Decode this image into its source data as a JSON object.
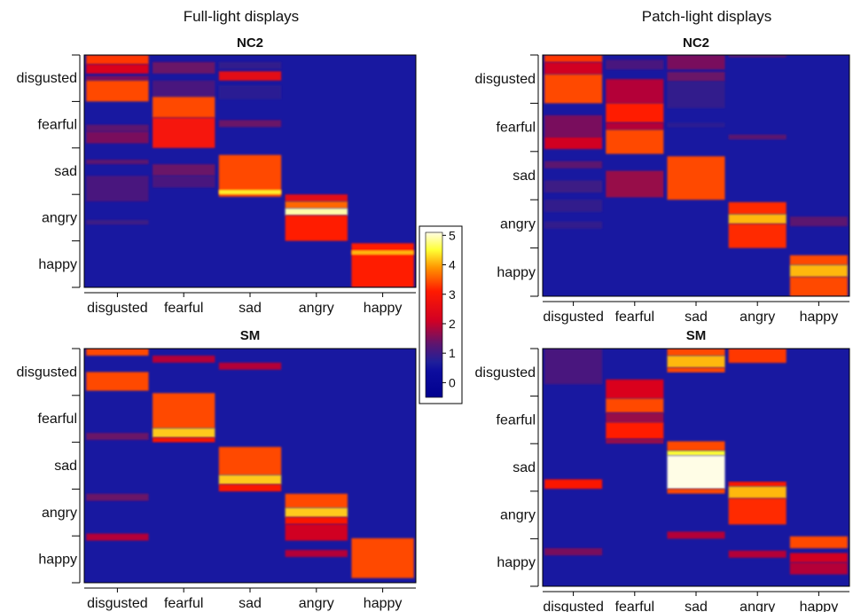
{
  "figure": {
    "col_titles": [
      "Full-light displays",
      "Patch-light displays"
    ],
    "colorbar": {
      "ticks": [
        "5",
        "4",
        "3",
        "2",
        "1",
        "0"
      ],
      "colors": [
        "#fffde6",
        "#ffff33",
        "#ff9500",
        "#ff1a00",
        "#d10024",
        "#5c1570",
        "#1f1f9a",
        "#0d0d9e",
        "#00008f"
      ]
    }
  },
  "colors": {
    "background": "#1818a0",
    "frame": "#000000"
  },
  "chart_data": [
    {
      "type": "heatmap",
      "title": "NC2",
      "column_title": "Full-light displays",
      "rows": [
        "disgusted",
        "fearful",
        "sad",
        "angry",
        "happy"
      ],
      "columns": [
        "disgusted",
        "fearful",
        "sad",
        "angry",
        "happy"
      ],
      "value_range": [
        0,
        5
      ],
      "bands": [
        {
          "col": 0,
          "y0": 0.0,
          "y1": 0.04,
          "v": 3.8
        },
        {
          "col": 0,
          "y0": 0.04,
          "y1": 0.08,
          "v": 2.8
        },
        {
          "col": 0,
          "y0": 0.09,
          "y1": 0.11,
          "v": 2.0
        },
        {
          "col": 0,
          "y0": 0.11,
          "y1": 0.2,
          "v": 3.9
        },
        {
          "col": 0,
          "y0": 0.3,
          "y1": 0.33,
          "v": 1.8
        },
        {
          "col": 0,
          "y0": 0.33,
          "y1": 0.38,
          "v": 2.0
        },
        {
          "col": 0,
          "y0": 0.45,
          "y1": 0.47,
          "v": 1.8
        },
        {
          "col": 0,
          "y0": 0.52,
          "y1": 0.63,
          "v": 1.6
        },
        {
          "col": 0,
          "y0": 0.71,
          "y1": 0.73,
          "v": 1.5
        },
        {
          "col": 1,
          "y0": 0.03,
          "y1": 0.08,
          "v": 1.9
        },
        {
          "col": 1,
          "y0": 0.11,
          "y1": 0.18,
          "v": 1.6
        },
        {
          "col": 1,
          "y0": 0.18,
          "y1": 0.27,
          "v": 3.9
        },
        {
          "col": 1,
          "y0": 0.27,
          "y1": 0.4,
          "v": 3.4
        },
        {
          "col": 1,
          "y0": 0.47,
          "y1": 0.52,
          "v": 1.9
        },
        {
          "col": 1,
          "y0": 0.52,
          "y1": 0.57,
          "v": 1.6
        },
        {
          "col": 2,
          "y0": 0.03,
          "y1": 0.06,
          "v": 1.4
        },
        {
          "col": 2,
          "y0": 0.07,
          "y1": 0.11,
          "v": 3.0
        },
        {
          "col": 2,
          "y0": 0.13,
          "y1": 0.19,
          "v": 1.3
        },
        {
          "col": 2,
          "y0": 0.28,
          "y1": 0.31,
          "v": 1.9
        },
        {
          "col": 2,
          "y0": 0.43,
          "y1": 0.61,
          "v": 3.9
        },
        {
          "col": 2,
          "y0": 0.58,
          "y1": 0.6,
          "v": 4.9
        },
        {
          "col": 3,
          "y0": 0.6,
          "y1": 0.63,
          "v": 3.0
        },
        {
          "col": 3,
          "y0": 0.63,
          "y1": 0.66,
          "v": 4.1
        },
        {
          "col": 3,
          "y0": 0.66,
          "y1": 0.69,
          "v": 5.4
        },
        {
          "col": 3,
          "y0": 0.69,
          "y1": 0.8,
          "v": 3.6
        },
        {
          "col": 4,
          "y0": 0.81,
          "y1": 1.0,
          "v": 3.6
        },
        {
          "col": 4,
          "y0": 0.84,
          "y1": 0.86,
          "v": 4.6
        }
      ]
    },
    {
      "type": "heatmap",
      "title": "NC2",
      "column_title": "Patch-light displays",
      "rows": [
        "disgusted",
        "fearful",
        "sad",
        "angry",
        "happy"
      ],
      "columns": [
        "disgusted",
        "fearful",
        "sad",
        "angry",
        "happy"
      ],
      "value_range": [
        0,
        5
      ],
      "bands": [
        {
          "col": 0,
          "y0": 0.0,
          "y1": 0.03,
          "v": 3.8
        },
        {
          "col": 0,
          "y0": 0.03,
          "y1": 0.08,
          "v": 2.6
        },
        {
          "col": 0,
          "y0": 0.08,
          "y1": 0.2,
          "v": 3.9
        },
        {
          "col": 0,
          "y0": 0.25,
          "y1": 0.34,
          "v": 2.0
        },
        {
          "col": 0,
          "y0": 0.34,
          "y1": 0.39,
          "v": 2.6
        },
        {
          "col": 0,
          "y0": 0.44,
          "y1": 0.47,
          "v": 1.8
        },
        {
          "col": 0,
          "y0": 0.52,
          "y1": 0.57,
          "v": 1.5
        },
        {
          "col": 0,
          "y0": 0.6,
          "y1": 0.65,
          "v": 1.4
        },
        {
          "col": 0,
          "y0": 0.69,
          "y1": 0.72,
          "v": 1.4
        },
        {
          "col": 1,
          "y0": 0.02,
          "y1": 0.06,
          "v": 1.6
        },
        {
          "col": 1,
          "y0": 0.1,
          "y1": 0.2,
          "v": 2.4
        },
        {
          "col": 1,
          "y0": 0.2,
          "y1": 0.28,
          "v": 3.6
        },
        {
          "col": 1,
          "y0": 0.28,
          "y1": 0.31,
          "v": 2.4
        },
        {
          "col": 1,
          "y0": 0.31,
          "y1": 0.41,
          "v": 3.9
        },
        {
          "col": 1,
          "y0": 0.48,
          "y1": 0.59,
          "v": 2.2
        },
        {
          "col": 2,
          "y0": 0.0,
          "y1": 0.06,
          "v": 2.0
        },
        {
          "col": 2,
          "y0": 0.07,
          "y1": 0.11,
          "v": 1.9
        },
        {
          "col": 2,
          "y0": 0.11,
          "y1": 0.22,
          "v": 1.4
        },
        {
          "col": 2,
          "y0": 0.28,
          "y1": 0.3,
          "v": 1.3
        },
        {
          "col": 2,
          "y0": 0.42,
          "y1": 0.6,
          "v": 3.9
        },
        {
          "col": 3,
          "y0": 0.0,
          "y1": 0.01,
          "v": 1.8
        },
        {
          "col": 3,
          "y0": 0.33,
          "y1": 0.35,
          "v": 1.8
        },
        {
          "col": 3,
          "y0": 0.61,
          "y1": 0.66,
          "v": 3.7
        },
        {
          "col": 3,
          "y0": 0.66,
          "y1": 0.7,
          "v": 4.6
        },
        {
          "col": 3,
          "y0": 0.7,
          "y1": 0.8,
          "v": 3.7
        },
        {
          "col": 4,
          "y0": 0.67,
          "y1": 0.71,
          "v": 1.8
        },
        {
          "col": 4,
          "y0": 0.83,
          "y1": 0.87,
          "v": 3.9
        },
        {
          "col": 4,
          "y0": 0.87,
          "y1": 0.92,
          "v": 4.6
        },
        {
          "col": 4,
          "y0": 0.92,
          "y1": 1.0,
          "v": 3.9
        }
      ]
    },
    {
      "type": "heatmap",
      "title": "SM",
      "column_title": "Full-light displays",
      "rows": [
        "disgusted",
        "fearful",
        "sad",
        "angry",
        "happy"
      ],
      "columns": [
        "disgusted",
        "fearful",
        "sad",
        "angry",
        "happy"
      ],
      "value_range": [
        0,
        5
      ],
      "bands": [
        {
          "col": 0,
          "y0": 0.0,
          "y1": 0.03,
          "v": 3.9
        },
        {
          "col": 0,
          "y0": 0.1,
          "y1": 0.18,
          "v": 3.9
        },
        {
          "col": 0,
          "y0": 0.36,
          "y1": 0.39,
          "v": 1.9
        },
        {
          "col": 0,
          "y0": 0.62,
          "y1": 0.65,
          "v": 1.9
        },
        {
          "col": 0,
          "y0": 0.79,
          "y1": 0.82,
          "v": 2.4
        },
        {
          "col": 1,
          "y0": 0.03,
          "y1": 0.06,
          "v": 2.4
        },
        {
          "col": 1,
          "y0": 0.19,
          "y1": 0.34,
          "v": 3.9
        },
        {
          "col": 1,
          "y0": 0.34,
          "y1": 0.38,
          "v": 4.7
        },
        {
          "col": 1,
          "y0": 0.38,
          "y1": 0.4,
          "v": 3.5
        },
        {
          "col": 2,
          "y0": 0.06,
          "y1": 0.09,
          "v": 2.4
        },
        {
          "col": 2,
          "y0": 0.42,
          "y1": 0.54,
          "v": 3.9
        },
        {
          "col": 2,
          "y0": 0.54,
          "y1": 0.58,
          "v": 4.7
        },
        {
          "col": 2,
          "y0": 0.58,
          "y1": 0.61,
          "v": 3.5
        },
        {
          "col": 3,
          "y0": 0.62,
          "y1": 0.68,
          "v": 3.9
        },
        {
          "col": 3,
          "y0": 0.68,
          "y1": 0.72,
          "v": 4.7
        },
        {
          "col": 3,
          "y0": 0.72,
          "y1": 0.75,
          "v": 3.5
        },
        {
          "col": 3,
          "y0": 0.75,
          "y1": 0.82,
          "v": 2.6
        },
        {
          "col": 3,
          "y0": 0.86,
          "y1": 0.89,
          "v": 2.4
        },
        {
          "col": 4,
          "y0": 0.81,
          "y1": 0.98,
          "v": 3.9
        }
      ]
    },
    {
      "type": "heatmap",
      "title": "SM",
      "column_title": "Patch-light displays",
      "rows": [
        "disgusted",
        "fearful",
        "sad",
        "angry",
        "happy"
      ],
      "columns": [
        "disgusted",
        "fearful",
        "sad",
        "angry",
        "happy"
      ],
      "value_range": [
        0,
        5
      ],
      "bands": [
        {
          "col": 0,
          "y0": 0.0,
          "y1": 0.15,
          "v": 1.6
        },
        {
          "col": 0,
          "y0": 0.55,
          "y1": 0.59,
          "v": 3.5
        },
        {
          "col": 0,
          "y0": 0.84,
          "y1": 0.87,
          "v": 2.0
        },
        {
          "col": 1,
          "y0": 0.13,
          "y1": 0.21,
          "v": 2.8
        },
        {
          "col": 1,
          "y0": 0.21,
          "y1": 0.27,
          "v": 3.9
        },
        {
          "col": 1,
          "y0": 0.27,
          "y1": 0.31,
          "v": 2.2
        },
        {
          "col": 1,
          "y0": 0.31,
          "y1": 0.38,
          "v": 3.6
        },
        {
          "col": 1,
          "y0": 0.38,
          "y1": 0.4,
          "v": 2.2
        },
        {
          "col": 2,
          "y0": 0.0,
          "y1": 0.03,
          "v": 3.9
        },
        {
          "col": 2,
          "y0": 0.03,
          "y1": 0.08,
          "v": 4.6
        },
        {
          "col": 2,
          "y0": 0.08,
          "y1": 0.1,
          "v": 3.9
        },
        {
          "col": 2,
          "y0": 0.39,
          "y1": 0.43,
          "v": 3.9
        },
        {
          "col": 2,
          "y0": 0.43,
          "y1": 0.45,
          "v": 5.0
        },
        {
          "col": 2,
          "y0": 0.45,
          "y1": 0.59,
          "v": 5.6
        },
        {
          "col": 2,
          "y0": 0.59,
          "y1": 0.61,
          "v": 3.9
        },
        {
          "col": 2,
          "y0": 0.77,
          "y1": 0.8,
          "v": 2.4
        },
        {
          "col": 3,
          "y0": 0.0,
          "y1": 0.06,
          "v": 3.8
        },
        {
          "col": 3,
          "y0": 0.56,
          "y1": 0.58,
          "v": 3.5
        },
        {
          "col": 3,
          "y0": 0.58,
          "y1": 0.63,
          "v": 4.6
        },
        {
          "col": 3,
          "y0": 0.63,
          "y1": 0.74,
          "v": 3.7
        },
        {
          "col": 3,
          "y0": 0.85,
          "y1": 0.88,
          "v": 2.4
        },
        {
          "col": 4,
          "y0": 0.79,
          "y1": 0.84,
          "v": 3.9
        },
        {
          "col": 4,
          "y0": 0.86,
          "y1": 0.9,
          "v": 2.6
        },
        {
          "col": 4,
          "y0": 0.9,
          "y1": 0.95,
          "v": 2.4
        }
      ]
    }
  ]
}
